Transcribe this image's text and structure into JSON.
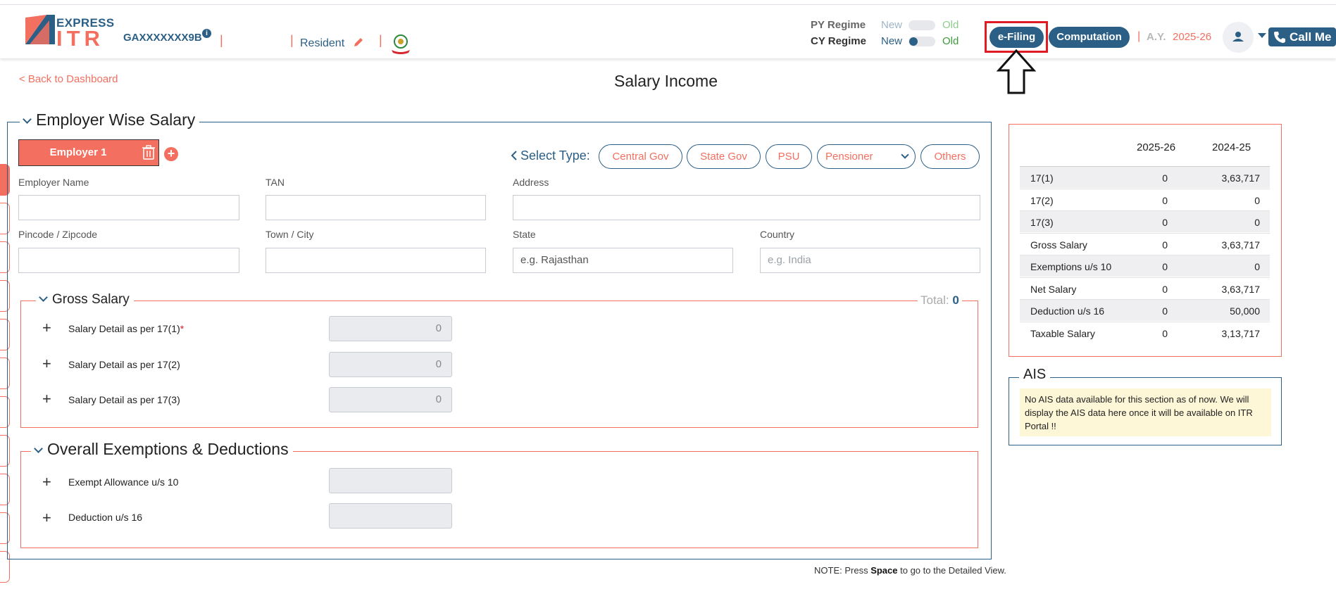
{
  "header": {
    "brand_express": "EXPRESS",
    "brand_itr": "ITR",
    "pan": "GAXXXXXXX9B",
    "pan_info": "i",
    "residency": "Resident",
    "py_regime_label": "PY Regime",
    "cy_regime_label": "CY Regime",
    "py_new": "New",
    "py_old": "Old",
    "cy_new": "New",
    "cy_old": "Old",
    "efiling_label": "e-Filing",
    "computation_label": "Computation",
    "ay_label": "A.Y.",
    "ay_value": "2025-26",
    "callme_label": "Call Me",
    "separator": "|"
  },
  "page": {
    "back_link": "< Back to Dashboard",
    "title": "Salary Income"
  },
  "employer_section": {
    "legend": "Employer Wise Salary",
    "employer_tab": "Employer 1",
    "add_symbol": "+",
    "select_type_label": "Select Type:",
    "types": [
      "Central Gov",
      "State Gov",
      "PSU",
      "Pensioner",
      "Others"
    ],
    "fields": {
      "employer_name": {
        "label": "Employer Name",
        "value": ""
      },
      "tan": {
        "label": "TAN",
        "value": ""
      },
      "address": {
        "label": "Address",
        "value": ""
      },
      "pincode": {
        "label": "Pincode / Zipcode",
        "value": ""
      },
      "town": {
        "label": "Town / City",
        "value": ""
      },
      "state": {
        "label": "State",
        "placeholder": "e.g. Rajasthan"
      },
      "country": {
        "label": "Country",
        "placeholder": "e.g. India"
      }
    }
  },
  "gross_salary": {
    "legend": "Gross Salary",
    "total_label": "Total:",
    "total_value": "0",
    "rows": [
      {
        "label": "Salary Detail as per 17(1)",
        "required": "*",
        "value": "0"
      },
      {
        "label": "Salary Detail as per 17(2)",
        "value": "0"
      },
      {
        "label": "Salary Detail as per 17(3)",
        "value": "0"
      }
    ]
  },
  "exemptions": {
    "legend": "Overall Exemptions & Deductions",
    "rows": [
      {
        "label": "Exempt Allowance u/s 10",
        "value": ""
      },
      {
        "label": "Deduction u/s 16",
        "value": ""
      }
    ]
  },
  "note": {
    "prefix": "NOTE: Press ",
    "key": "Space",
    "suffix": " to go to the Detailed View."
  },
  "summary": {
    "col1": "2025-26",
    "col2": "2024-25",
    "rows": [
      {
        "label": "17(1)",
        "cy": "0",
        "py": "3,63,717"
      },
      {
        "label": "17(2)",
        "cy": "0",
        "py": "0"
      },
      {
        "label": "17(3)",
        "cy": "0",
        "py": "0"
      },
      {
        "label": "Gross Salary",
        "cy": "0",
        "py": "3,63,717"
      },
      {
        "label": "Exemptions u/s 10",
        "cy": "0",
        "py": "0"
      },
      {
        "label": "Net Salary",
        "cy": "0",
        "py": "3,63,717"
      },
      {
        "label": "Deduction u/s 16",
        "cy": "0",
        "py": "50,000"
      },
      {
        "label": "Taxable Salary",
        "cy": "0",
        "py": "3,13,717"
      }
    ]
  },
  "ais": {
    "legend": "AIS",
    "message": "No AIS data available for this section as of now. We will display the AIS data here once it will be available on ITR Portal !!"
  },
  "colors": {
    "primary": "#2b5f86",
    "accent": "#f36f5f",
    "highlight_border": "#e01b24"
  },
  "icons": [
    "itr-logo-icon",
    "info-icon",
    "edit-pencil-icon",
    "emblem-icon",
    "user-avatar-icon",
    "dropdown-caret-icon",
    "phone-icon",
    "trash-icon",
    "add-icon",
    "chevron-left-icon",
    "chevron-down-icon",
    "plus-icon",
    "arrow-up-icon"
  ]
}
